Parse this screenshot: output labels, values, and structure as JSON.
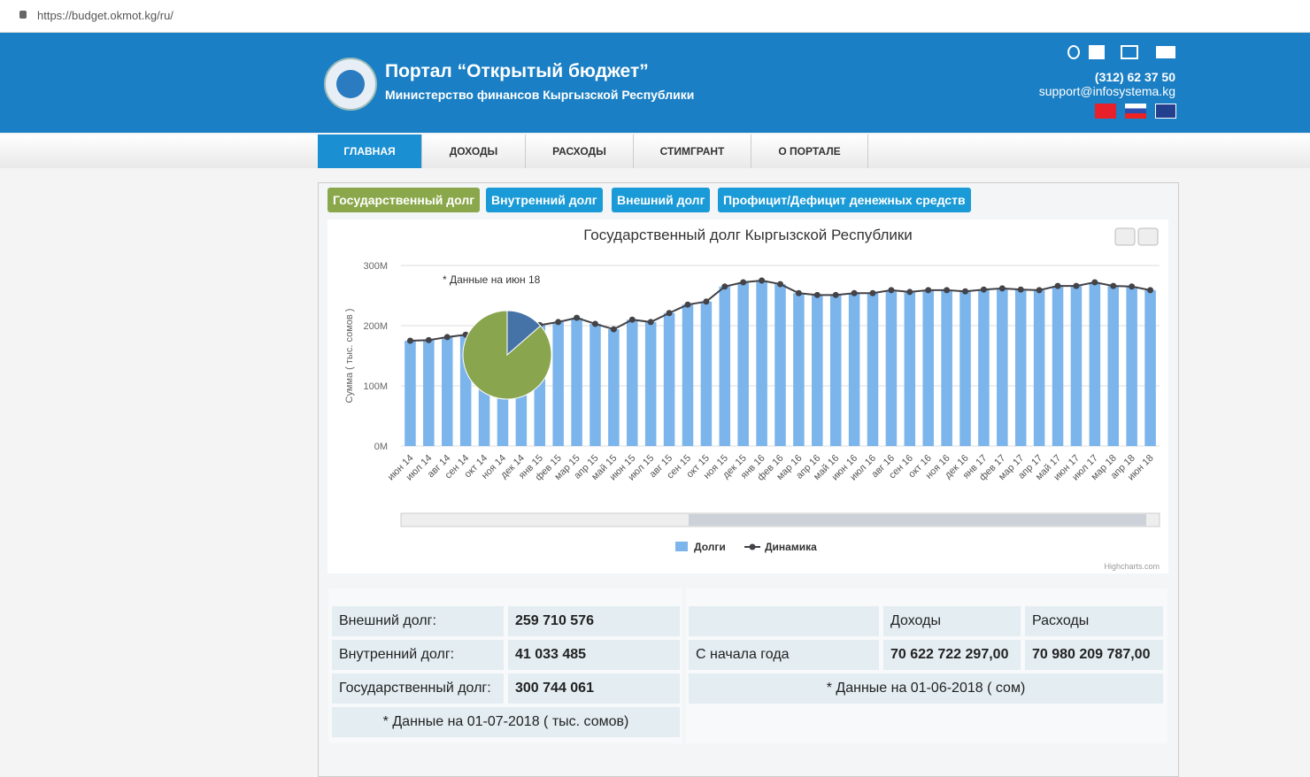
{
  "browser": {
    "url": "https://budget.okmot.kg/ru/"
  },
  "header": {
    "title": "Портал “Открытый бюджет”",
    "subtitle": "Министерство финансов Кыргызской Республики",
    "phone": "(312) 62 37 50",
    "email": "support@infosystema.kg"
  },
  "nav": [
    "ГЛАВНАЯ",
    "ДОХОДЫ",
    "РАСХОДЫ",
    "СТИМГРАНТ",
    "О ПОРТАЛЕ"
  ],
  "tabs": [
    "Государственный долг",
    "Внутренний долг",
    "Внешний долг",
    "Профицит/Дефицит денежных средств"
  ],
  "chart_data": {
    "type": "bar",
    "title": "Государственный долг Кыргызской Республики",
    "y_label": "Сумма ( тыс. сомов )",
    "annotation": "* Данные на июн 18",
    "credits": "Highcharts.com",
    "categories": [
      "июн 14",
      "июл 14",
      "авг 14",
      "сен 14",
      "окт 14",
      "ноя 14",
      "дек 14",
      "янв 15",
      "фев 15",
      "мар 15",
      "апр 15",
      "май 15",
      "июн 15",
      "июл 15",
      "авг 15",
      "сен 15",
      "окт 15",
      "ноя 15",
      "дек 15",
      "янв 16",
      "фев 16",
      "мар 16",
      "апр 16",
      "май 16",
      "июн 16",
      "июл 16",
      "авг 16",
      "сен 16",
      "окт 16",
      "ноя 16",
      "дек 16",
      "янв 17",
      "фев 17",
      "мар 17",
      "апр 17",
      "май 17",
      "июн 17",
      "июл 17",
      "мар 18",
      "апр 18",
      "июн 18"
    ],
    "series": [
      {
        "name": "Долги",
        "type": "bar",
        "color": "#7cb5ec",
        "values": [
          175,
          176,
          181,
          185,
          190,
          194,
          199,
          201,
          206,
          213,
          203,
          194,
          210,
          206,
          221,
          235,
          240,
          265,
          272,
          275,
          269,
          254,
          251,
          251,
          254,
          254,
          259,
          256,
          259,
          259,
          257,
          260,
          262,
          260,
          259,
          266,
          266,
          272,
          266,
          265,
          259
        ]
      },
      {
        "name": "Динамика",
        "type": "line",
        "color": "#434348",
        "values": [
          175,
          176,
          181,
          185,
          190,
          194,
          199,
          201,
          206,
          213,
          203,
          194,
          210,
          206,
          221,
          235,
          240,
          265,
          272,
          275,
          269,
          254,
          251,
          251,
          254,
          254,
          259,
          256,
          259,
          259,
          257,
          260,
          262,
          260,
          259,
          266,
          266,
          272,
          266,
          265,
          259
        ]
      }
    ],
    "pie": {
      "type": "pie",
      "values": [
        13.6,
        86.4
      ],
      "colors": [
        "#4572a7",
        "#89a54e"
      ]
    },
    "ylim": [
      0,
      300
    ],
    "yticks": [
      {
        "value": 0,
        "label": "0M"
      },
      {
        "value": 100,
        "label": "100M"
      },
      {
        "value": 200,
        "label": "200M"
      },
      {
        "value": 300,
        "label": "300M"
      }
    ],
    "grid": true
  },
  "debt_table": {
    "rows": [
      [
        "Внешний долг:",
        "259 710 576"
      ],
      [
        "Внутренний долг:",
        "41 033 485"
      ],
      [
        "Государственный долг:",
        "300 744 061"
      ]
    ],
    "note": "* Данные на 01-07-2018 ( тыс. сомов)"
  },
  "budget_table": {
    "header": [
      "Доходы",
      "Расходы"
    ],
    "row": [
      "С начала года",
      "70 622 722 297,00",
      "70 980 209 787,00"
    ],
    "note": "* Данные на 01-06-2018 ( сом)"
  }
}
